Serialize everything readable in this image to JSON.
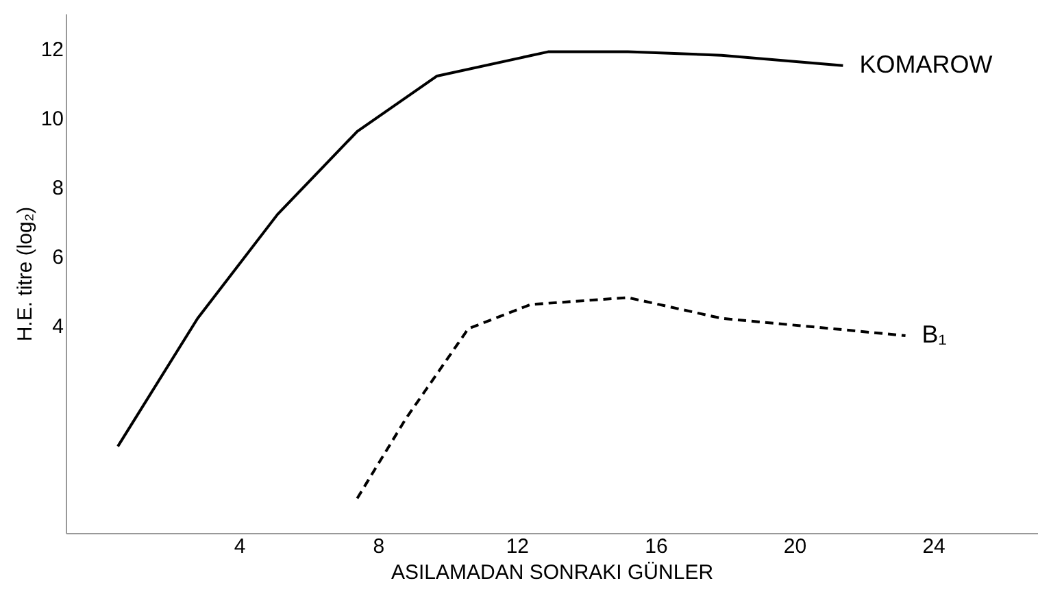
{
  "chart_data": {
    "type": "line",
    "xlabel": "ASILAMADAN SONRAKI GÜNLER",
    "ylabel": "H.E. titre (log₂)",
    "xlim": [
      -1,
      27
    ],
    "ylim": [
      -2,
      13
    ],
    "xticks": [
      4,
      8,
      12,
      16,
      20,
      24
    ],
    "yticks": [
      4,
      6,
      8,
      10,
      12
    ],
    "grid": false,
    "legend": false,
    "marker": "none",
    "series": [
      {
        "name": "KOMAROW",
        "color": "#000000",
        "line_style": "solid",
        "x": [
          0.5,
          2.8,
          5.1,
          7.4,
          9.7,
          12.9,
          15.2,
          17.9,
          21.4
        ],
        "values": [
          0.5,
          4.2,
          7.2,
          9.6,
          11.2,
          11.9,
          11.9,
          11.8,
          11.5
        ]
      },
      {
        "name": "B₁",
        "color": "#000000",
        "line_style": "dashed",
        "x": [
          7.4,
          8.8,
          10.6,
          12.4,
          15.2,
          17.9,
          21.1,
          23.2
        ],
        "values": [
          -1,
          1.3,
          3.9,
          4.6,
          4.8,
          4.2,
          3.9,
          3.7
        ]
      }
    ]
  }
}
